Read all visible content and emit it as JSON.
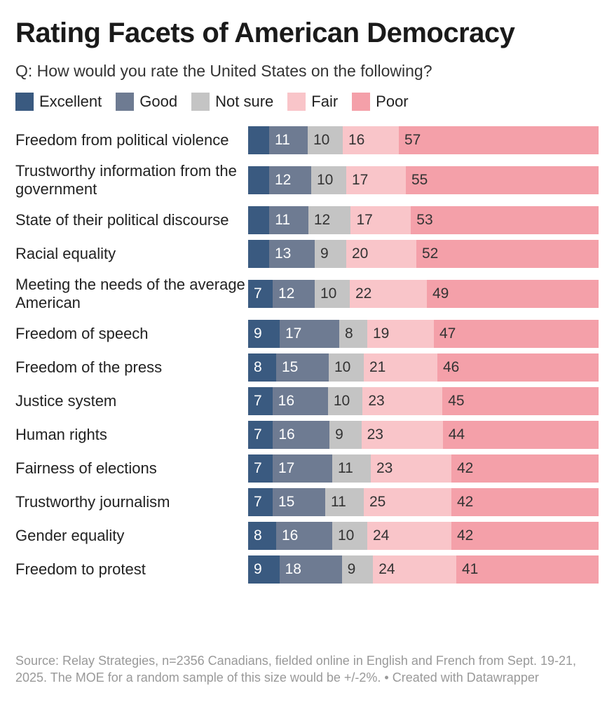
{
  "chart_data": {
    "type": "bar",
    "orientation": "horizontal-stacked",
    "title": "Rating Facets of American Democracy",
    "subtitle": "Q: How would you rate the United States on the following?",
    "legend_position": "top",
    "series_names": [
      "Excellent",
      "Good",
      "Not sure",
      "Fair",
      "Poor"
    ],
    "colors": [
      "#3a5a80",
      "#6e7b92",
      "#c4c4c4",
      "#f9c5c9",
      "#f4a0a9"
    ],
    "label_colors": [
      "#ffffff",
      "#ffffff",
      "#333333",
      "#333333",
      "#333333"
    ],
    "categories": [
      "Freedom from political violence",
      "Trustworthy information from the government",
      "State of their political discourse",
      "Racial equality",
      "Meeting the needs of the average American",
      "Freedom of speech",
      "Freedom of the press",
      "Justice system",
      "Human rights",
      "Fairness of elections",
      "Trustworthy journalism",
      "Gender equality",
      "Freedom to protest"
    ],
    "values": [
      [
        6,
        11,
        10,
        16,
        57
      ],
      [
        6,
        12,
        10,
        17,
        55
      ],
      [
        6,
        11,
        12,
        17,
        53
      ],
      [
        6,
        13,
        9,
        20,
        52
      ],
      [
        7,
        12,
        10,
        22,
        49
      ],
      [
        9,
        17,
        8,
        19,
        47
      ],
      [
        8,
        15,
        10,
        21,
        46
      ],
      [
        7,
        16,
        10,
        23,
        45
      ],
      [
        7,
        16,
        9,
        23,
        44
      ],
      [
        7,
        17,
        11,
        23,
        42
      ],
      [
        7,
        15,
        11,
        25,
        42
      ],
      [
        8,
        16,
        10,
        24,
        42
      ],
      [
        9,
        18,
        9,
        24,
        41
      ]
    ],
    "hidden_labels": [
      [
        true,
        false,
        false,
        false,
        false
      ],
      [
        true,
        false,
        false,
        false,
        false
      ],
      [
        true,
        false,
        false,
        false,
        false
      ],
      [
        true,
        false,
        false,
        false,
        false
      ]
    ],
    "xlim": [
      0,
      100
    ]
  },
  "footer": "Source: Relay Strategies, n=2356 Canadians, fielded online in English and French from Sept. 19-21, 2025. The MOE for a random sample of this size would be +/-2%. • Created with Datawrapper"
}
